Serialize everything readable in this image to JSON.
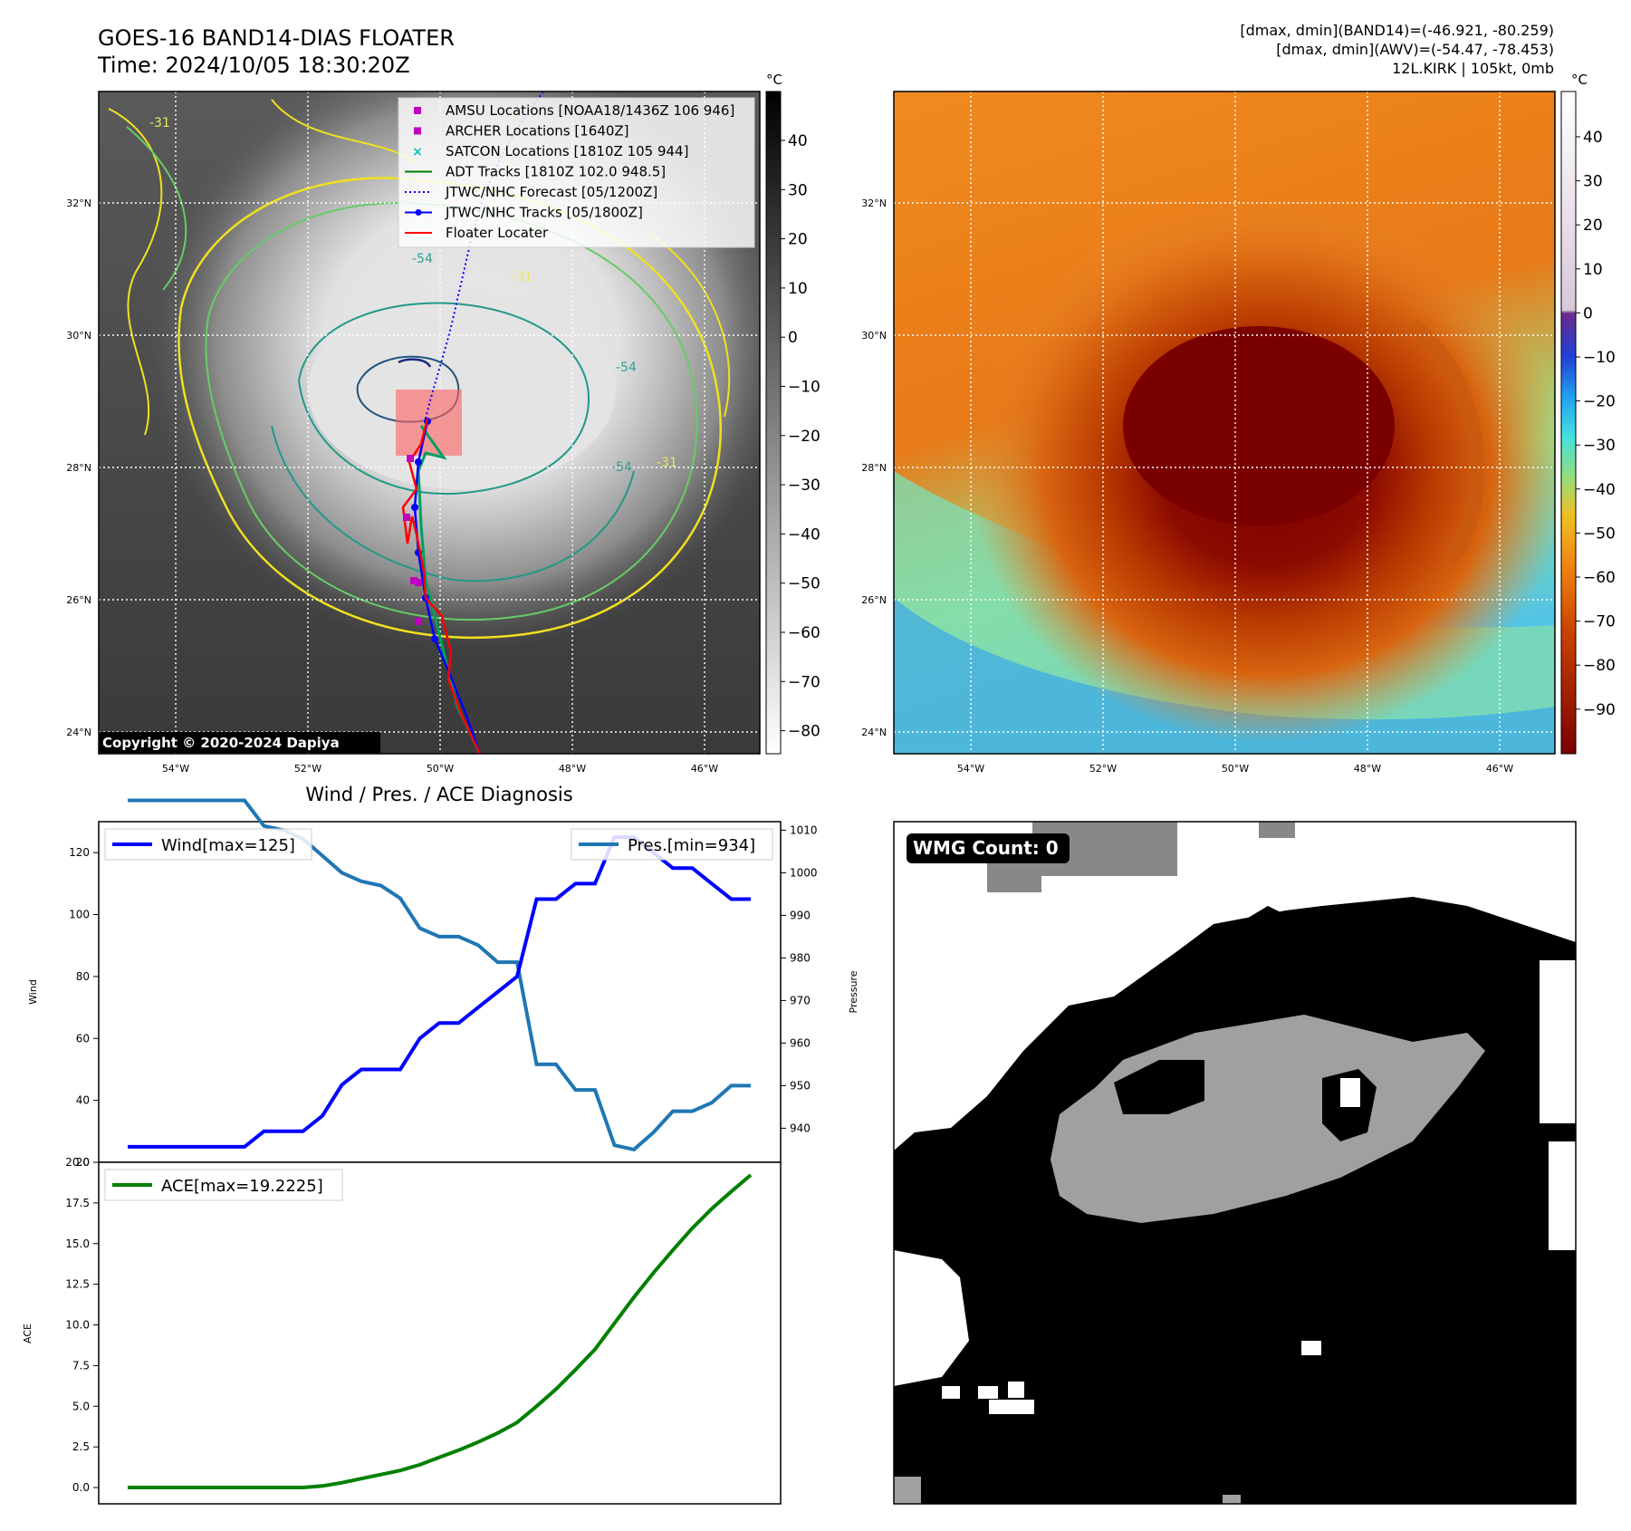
{
  "header": {
    "title_line1": "GOES-16 BAND14-DIAS FLOATER",
    "title_line2": "Time: 2024/10/05 18:30:20Z",
    "info_line1": "[dmax, dmin](BAND14)=(-46.921, -80.259)",
    "info_line2": "[dmax, dmin](AWV)=(-54.47, -78.453)",
    "info_line3": "12L.KIRK | 105kt, 0mb"
  },
  "map": {
    "lat_labels": [
      "32°N",
      "30°N",
      "28°N",
      "26°N",
      "24°N"
    ],
    "lon_labels": [
      "54°W",
      "52°W",
      "50°W",
      "48°W",
      "46°W"
    ],
    "copyright": "Copyright © 2020-2024 Dapiya",
    "contour_labels": [
      "-31",
      "-54",
      "-31",
      "-54",
      "-31",
      "-54"
    ],
    "legend": [
      {
        "label": "AMSU Locations [NOAA18/1436Z 106 946]",
        "color": "#c000c0",
        "marker": "square"
      },
      {
        "label": "ARCHER Locations [1640Z]",
        "color": "#c000c0",
        "marker": "square"
      },
      {
        "label": "SATCON Locations [1810Z 105 944]",
        "color": "#00c0c0",
        "marker": "x"
      },
      {
        "label": "ADT Tracks [1810Z 102.0 948.5]",
        "color": "#008000",
        "marker": "line"
      },
      {
        "label": "JTWC/NHC Forecast [05/1200Z]",
        "color": "#0000ff",
        "marker": "dotted"
      },
      {
        "label": "JTWC/NHC Tracks [05/1800Z]",
        "color": "#0000ff",
        "marker": "line-dot"
      },
      {
        "label": "Floater Locater",
        "color": "#ff0000",
        "marker": "line"
      }
    ]
  },
  "colorbar_gray": {
    "unit": "°C",
    "ticks": [
      "40",
      "30",
      "20",
      "10",
      "0",
      "−10",
      "−20",
      "−30",
      "−40",
      "−50",
      "−60",
      "−70",
      "−80"
    ]
  },
  "colorbar_color": {
    "unit": "°C",
    "ticks": [
      "40",
      "30",
      "20",
      "10",
      "0",
      "−10",
      "−20",
      "−30",
      "−40",
      "−50",
      "−60",
      "−70",
      "−80",
      "−90"
    ]
  },
  "wmg": {
    "label": "WMG Count: 0"
  },
  "chart_data": [
    {
      "type": "line",
      "title": "Wind / Pres. / ACE Diagnosis",
      "ylabel": "Wind",
      "ylim": [
        20,
        130
      ],
      "yticks": [
        "20",
        "40",
        "60",
        "80",
        "100",
        "120"
      ],
      "series": [
        {
          "name": "Wind[max=125]",
          "color": "#0000ff",
          "values": [
            25,
            25,
            25,
            25,
            25,
            25,
            25,
            30,
            30,
            30,
            35,
            45,
            50,
            50,
            50,
            60,
            65,
            65,
            70,
            75,
            80,
            105,
            105,
            110,
            110,
            125,
            125,
            120,
            115,
            115,
            110,
            105,
            105
          ]
        }
      ]
    },
    {
      "type": "line",
      "ylabel": "Pressure",
      "ylim": [
        932,
        1012
      ],
      "yticks": [
        "940",
        "950",
        "960",
        "970",
        "980",
        "990",
        "1000",
        "1010"
      ],
      "series": [
        {
          "name": "Pres.[min=934]",
          "color": "#1f77b4",
          "values": [
            1017,
            1017,
            1017,
            1017,
            1017,
            1017,
            1017,
            1011,
            1010,
            1008,
            1004,
            1000,
            998,
            997,
            994,
            987,
            985,
            985,
            983,
            979,
            979,
            955,
            955,
            949,
            949,
            936,
            935,
            939,
            944,
            944,
            946,
            950,
            950
          ]
        }
      ]
    },
    {
      "type": "line",
      "ylabel": "ACE",
      "ylim": [
        -1,
        20
      ],
      "yticks": [
        "0.0",
        "2.5",
        "5.0",
        "7.5",
        "10.0",
        "12.5",
        "15.0",
        "17.5",
        "20.0"
      ],
      "series": [
        {
          "name": "ACE[max=19.2225]",
          "color": "#008000",
          "values": [
            0,
            0,
            0,
            0,
            0,
            0,
            0,
            0,
            0,
            0,
            0.1,
            0.3,
            0.55,
            0.8,
            1.05,
            1.4,
            1.85,
            2.3,
            2.8,
            3.35,
            4.0,
            5.0,
            6.05,
            7.25,
            8.5,
            10.1,
            11.7,
            13.2,
            14.6,
            15.95,
            17.15,
            18.2,
            19.22
          ]
        }
      ]
    }
  ]
}
